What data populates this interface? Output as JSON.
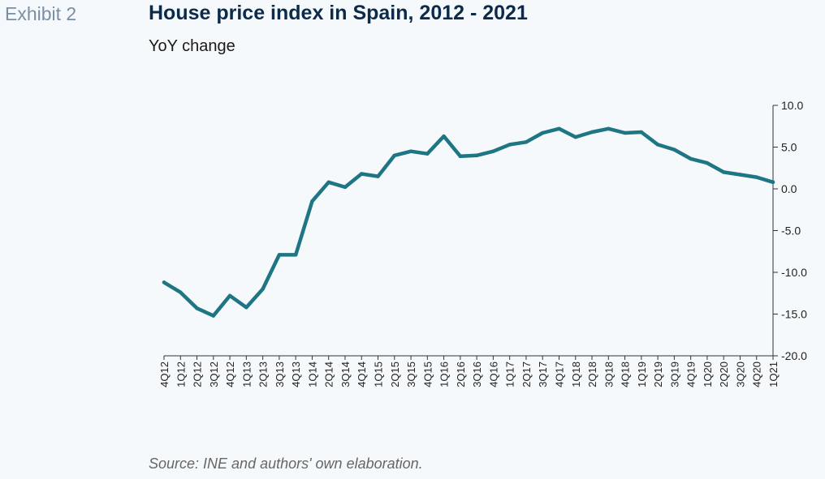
{
  "header": {
    "exhibit_label": "Exhibit 2",
    "title": "House price index in Spain, 2012 - 2021",
    "subtitle": "YoY change"
  },
  "footer": {
    "source": "Source: INE and authors' own elaboration."
  },
  "colors": {
    "line": "#1e7583",
    "axis": "#333333"
  },
  "chart_data": {
    "type": "line",
    "title": "House price index in Spain, 2012 - 2021",
    "ylabel": "",
    "xlabel": "",
    "ylim": [
      -20,
      10
    ],
    "yticks": [
      10,
      5,
      0,
      -5,
      -10,
      -15,
      -20
    ],
    "ytick_labels": [
      "10.0",
      "5.0",
      "0.0",
      "-5.0",
      "-10.0",
      "-15.0",
      "-20.0"
    ],
    "y_axis_side": "right",
    "grid": false,
    "legend": "none",
    "categories": [
      "4Q12",
      "1Q12",
      "2Q12",
      "3Q12",
      "4Q12",
      "1Q13",
      "2Q13",
      "3Q13",
      "4Q13",
      "1Q14",
      "2Q14",
      "3Q14",
      "4Q14",
      "1Q15",
      "2Q15",
      "3Q15",
      "4Q15",
      "1Q16",
      "2Q16",
      "3Q16",
      "4Q16",
      "1Q17",
      "2Q17",
      "3Q17",
      "4Q17",
      "1Q18",
      "2Q18",
      "3Q18",
      "4Q18",
      "1Q19",
      "2Q19",
      "3Q19",
      "4Q19",
      "1Q20",
      "2Q20",
      "3Q20",
      "4Q20",
      "1Q21"
    ],
    "series": [
      {
        "values": [
          -11.2,
          -12.4,
          -14.3,
          -15.2,
          -12.8,
          -14.2,
          -12.0,
          -7.9,
          -7.9,
          -1.5,
          0.8,
          0.2,
          1.8,
          1.5,
          4.0,
          4.5,
          4.2,
          6.3,
          3.9,
          4.0,
          4.5,
          5.3,
          5.6,
          6.7,
          7.2,
          6.2,
          6.8,
          7.2,
          6.7,
          6.8,
          5.3,
          4.7,
          3.6,
          3.1,
          2.0,
          1.7,
          1.4,
          0.8
        ]
      }
    ]
  }
}
